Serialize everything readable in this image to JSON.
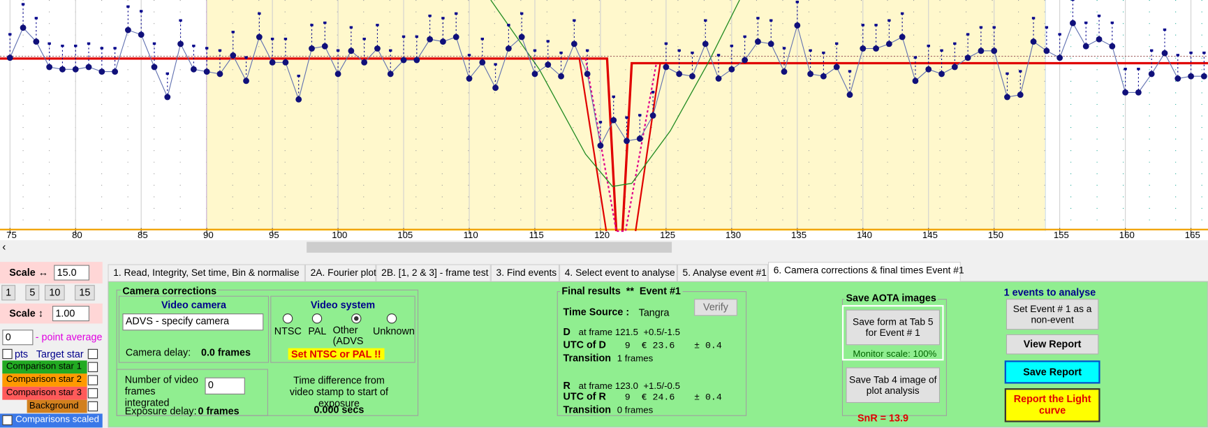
{
  "plot": {
    "xlim": [
      74.24,
      166.3
    ],
    "ylim": [
      0,
      100
    ],
    "xticks": [
      75,
      80,
      85,
      90,
      95,
      100,
      105,
      110,
      115,
      120,
      125,
      130,
      135,
      140,
      145,
      150,
      155,
      160,
      165
    ],
    "points": {
      "x": [
        75,
        76,
        77,
        78,
        79,
        80,
        81,
        82,
        83,
        84,
        85,
        86,
        87,
        88,
        89,
        90,
        91,
        92,
        93,
        94,
        95,
        96,
        97,
        98,
        99,
        100,
        101,
        102,
        103,
        104,
        105,
        106,
        107,
        108,
        109,
        110,
        111,
        112,
        113,
        114,
        115,
        116,
        117,
        118,
        119,
        120,
        121,
        122,
        123,
        124,
        125,
        126,
        127,
        128,
        129,
        130,
        131,
        132,
        133,
        134,
        135,
        136,
        137,
        138,
        139,
        140,
        141,
        142,
        143,
        144,
        145,
        146,
        147,
        148,
        149,
        150,
        151,
        152,
        153,
        154,
        155,
        156,
        157,
        158,
        159,
        160,
        161,
        162,
        163,
        164,
        165,
        166
      ],
      "y": [
        75,
        88,
        82,
        71,
        70,
        70,
        71,
        69,
        69,
        87,
        85,
        71,
        58,
        81,
        70,
        69,
        68,
        76,
        65,
        84,
        73,
        73,
        57,
        79,
        80,
        68,
        78,
        73,
        79,
        68,
        74,
        74,
        83,
        82,
        84,
        66,
        73,
        62,
        79,
        84,
        68,
        72,
        67,
        81,
        68,
        37,
        48,
        39,
        40,
        50,
        71,
        68,
        67,
        81,
        66,
        70,
        74,
        82,
        81,
        69,
        89,
        68,
        67,
        71,
        59,
        79,
        79,
        81,
        84,
        65,
        70,
        68,
        71,
        75,
        78,
        78,
        58,
        59,
        82,
        78,
        75,
        90,
        80,
        83,
        80,
        60,
        60,
        68,
        77,
        66,
        67,
        67
      ]
    }
  },
  "left_panel": {
    "scale_h_label": "Scale ↔",
    "scale_h_value": "15.0",
    "zoom_buttons": [
      "1",
      "5",
      "10",
      "15"
    ],
    "scale_v_label": "Scale ↕",
    "scale_v_value": "1.00",
    "point_average_value": "0",
    "point_average_label": "- point average",
    "pts_label": "pts",
    "target_star": "Target star",
    "comparison_star_1": "Comparison star 1",
    "comparison_star_2": "Comparison star 2",
    "comparison_star_3": "Comparison star 3",
    "background": "Background",
    "comparisons_scaled": "Comparisons scaled"
  },
  "tabs": [
    "1.  Read, Integrity, Set time, Bin & normalise",
    "2A. Fourier plot",
    "2B. [1, 2 & 3] - frame test",
    "3. Find events",
    "4. Select event to analyse",
    "5. Analyse event #1",
    "6. Camera corrections & final times Event #1"
  ],
  "camera_corrections": {
    "title": "Camera corrections",
    "video_camera_title": "Video camera",
    "camera_select": "ADVS - specify camera",
    "camera_delay_label": "Camera delay:",
    "camera_delay_value": "0.0 frames",
    "video_system_title": "Video system",
    "video_system_options": [
      "NTSC",
      "PAL",
      "Other (ADVS",
      "Unknown"
    ],
    "video_system_warning": "Set NTSC or PAL !!",
    "frames_integrated_label": "Number of video frames integrated",
    "frames_integrated_value": "0",
    "exposure_delay_label": "Exposure delay:",
    "exposure_delay_value": "0 frames",
    "time_difference_label": "Time difference from video stamp to start of exposure",
    "time_difference_value": "0.000 secs"
  },
  "final_results": {
    "title": "Final results  **  Event #1",
    "verify": "Verify",
    "time_source_label": "Time Source :",
    "time_source_value": "Tangra",
    "d_label": "D",
    "d_frame": "at frame 121.5  +0.5/-1.5",
    "utc_d_label": "UTC of D",
    "utc_d_value": "9  € 23.6",
    "utc_d_error": "± 0.4",
    "transition_label": "Transition",
    "d_transition": "1 frames",
    "r_label": "R",
    "r_frame": "at frame 123.0  +1.5/-0.5",
    "utc_r_label": "UTC of R",
    "utc_r_value": "9  € 24.6",
    "utc_r_error": "± 0.4",
    "r_transition": "0 frames"
  },
  "aota": {
    "title": "Save AOTA images",
    "save_form": "Save form at Tab 5 for Event # 1",
    "monitor_scale": "Monitor scale: 100%",
    "save_tab4": "Save Tab 4 image of plot analysis",
    "snr": "SnR = 13.9"
  },
  "report": {
    "events_count": "1 events to analyse",
    "set_non_event": "Set Event # 1 as a non-event",
    "view_report": "View Report",
    "save_report": "Save Report",
    "report_light_curve": "Report the Light curve"
  }
}
